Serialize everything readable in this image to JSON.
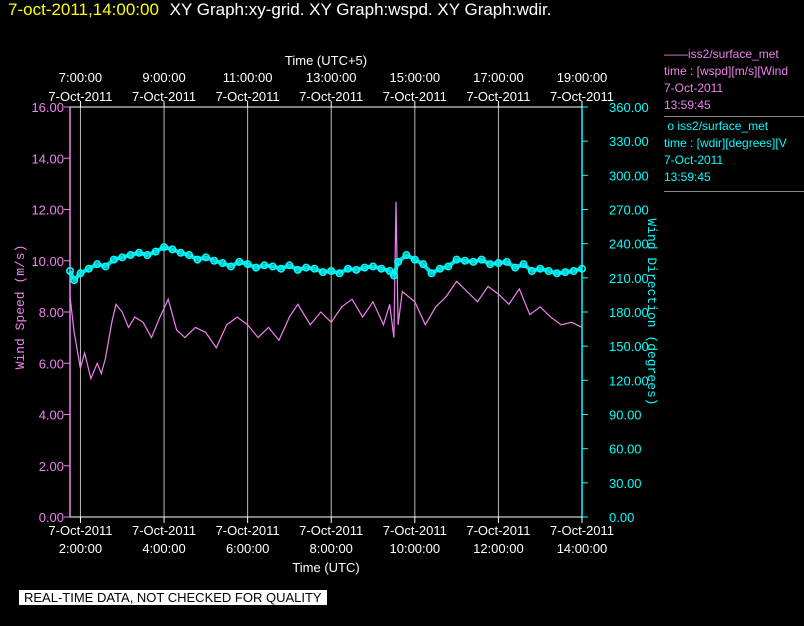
{
  "header": {
    "timestamp": "7-oct-2011,14:00:00",
    "title": "XY Graph:xy-grid.  XY Graph:wspd.  XY Graph:wdir."
  },
  "legend": [
    {
      "marker": "——",
      "name": "iss2/surface_met",
      "expr": "time : [wspd][m/s][Wind",
      "date": "7-Oct-2011",
      "time": "13:59:45",
      "color": "#ee82ee"
    },
    {
      "marker": "o",
      "name": "iss2/surface_met",
      "expr": "time : [wdir][degrees][V",
      "date": "7-Oct-2011",
      "time": "13:59:45",
      "color": "#00ffff"
    }
  ],
  "footer": {
    "quality_note": "REAL-TIME DATA, NOT CHECKED FOR QUALITY"
  },
  "chart_data": {
    "type": "line",
    "xlabel_bottom": "Time (UTC)",
    "xlabel_top": "Time (UTC+5)",
    "ylabel_left": "Wind Speed (m/s)",
    "ylabel_right": "Wind Direction (degrees)",
    "xlim": [
      "2011-10-07T01:45:00",
      "2011-10-07T14:00:00"
    ],
    "ylim_left": [
      0,
      16
    ],
    "ylim_right": [
      0,
      360
    ],
    "grid": true,
    "bottom_ticks": [
      {
        "date": "7-Oct-2011",
        "time": "2:00:00",
        "hour": 2
      },
      {
        "date": "7-Oct-2011",
        "time": "4:00:00",
        "hour": 4
      },
      {
        "date": "7-Oct-2011",
        "time": "6:00:00",
        "hour": 6
      },
      {
        "date": "7-Oct-2011",
        "time": "8:00:00",
        "hour": 8
      },
      {
        "date": "7-Oct-2011",
        "time": "10:00:00",
        "hour": 10
      },
      {
        "date": "7-Oct-2011",
        "time": "12:00:00",
        "hour": 12
      },
      {
        "date": "7-Oct-2011",
        "time": "14:00:00",
        "hour": 14
      }
    ],
    "top_ticks": [
      {
        "time": "7:00:00",
        "date": "7-Oct-2011",
        "hour": 2
      },
      {
        "time": "9:00:00",
        "date": "7-Oct-2011",
        "hour": 4
      },
      {
        "time": "11:00:00",
        "date": "7-Oct-2011",
        "hour": 6
      },
      {
        "time": "13:00:00",
        "date": "7-Oct-2011",
        "hour": 8
      },
      {
        "time": "15:00:00",
        "date": "7-Oct-2011",
        "hour": 10
      },
      {
        "time": "17:00:00",
        "date": "7-Oct-2011",
        "hour": 12
      },
      {
        "time": "19:00:00",
        "date": "7-Oct-2011",
        "hour": 14
      }
    ],
    "left_ticks": [
      "0.00",
      "2.00",
      "4.00",
      "6.00",
      "8.00",
      "10.00",
      "12.00",
      "14.00",
      "16.00"
    ],
    "right_ticks": [
      "0.00",
      "30.00",
      "60.00",
      "90.00",
      "120.00",
      "150.00",
      "180.00",
      "210.00",
      "240.00",
      "270.00",
      "300.00",
      "330.00",
      "360.00"
    ],
    "series": [
      {
        "name": "wspd",
        "axis": "left",
        "style": "line",
        "color": "#ee82ee",
        "hours": [
          1.75,
          1.85,
          2.0,
          2.1,
          2.25,
          2.4,
          2.5,
          2.6,
          2.75,
          2.85,
          3.0,
          3.15,
          3.3,
          3.5,
          3.7,
          3.9,
          4.1,
          4.3,
          4.5,
          4.75,
          5.0,
          5.25,
          5.5,
          5.75,
          6.0,
          6.25,
          6.5,
          6.75,
          7.0,
          7.2,
          7.5,
          7.75,
          8.0,
          8.25,
          8.5,
          8.75,
          9.0,
          9.25,
          9.4,
          9.5,
          9.55,
          9.6,
          9.7,
          9.85,
          10.0,
          10.25,
          10.5,
          10.75,
          11.0,
          11.25,
          11.5,
          11.75,
          12.0,
          12.25,
          12.5,
          12.75,
          13.0,
          13.25,
          13.5,
          13.75,
          14.0
        ],
        "values": [
          8.6,
          7.2,
          5.8,
          6.4,
          5.4,
          6.0,
          5.6,
          6.2,
          7.6,
          8.3,
          8.0,
          7.4,
          7.8,
          7.6,
          7.0,
          7.8,
          8.5,
          7.3,
          7.0,
          7.4,
          7.2,
          6.6,
          7.5,
          7.8,
          7.5,
          7.0,
          7.4,
          6.9,
          7.8,
          8.3,
          7.5,
          8.0,
          7.6,
          8.2,
          8.5,
          7.8,
          8.4,
          7.5,
          8.3,
          7.0,
          12.3,
          7.5,
          8.8,
          8.6,
          8.4,
          7.5,
          8.2,
          8.6,
          9.2,
          8.8,
          8.4,
          9.0,
          8.7,
          8.3,
          8.9,
          7.9,
          8.2,
          7.8,
          7.5,
          7.6,
          7.4
        ]
      },
      {
        "name": "wdir",
        "axis": "right",
        "style": "markers",
        "color": "#00ffff",
        "hours": [
          1.75,
          1.85,
          2.0,
          2.2,
          2.4,
          2.6,
          2.8,
          3.0,
          3.2,
          3.4,
          3.6,
          3.8,
          4.0,
          4.2,
          4.4,
          4.6,
          4.8,
          5.0,
          5.2,
          5.4,
          5.6,
          5.8,
          6.0,
          6.2,
          6.4,
          6.6,
          6.8,
          7.0,
          7.2,
          7.4,
          7.6,
          7.8,
          8.0,
          8.2,
          8.4,
          8.6,
          8.8,
          9.0,
          9.2,
          9.4,
          9.5,
          9.6,
          9.8,
          10.0,
          10.2,
          10.4,
          10.6,
          10.8,
          11.0,
          11.2,
          11.4,
          11.6,
          11.8,
          12.0,
          12.2,
          12.4,
          12.6,
          12.8,
          13.0,
          13.2,
          13.4,
          13.6,
          13.8,
          14.0
        ],
        "values": [
          216,
          208,
          214,
          218,
          222,
          220,
          226,
          228,
          230,
          232,
          230,
          233,
          237,
          235,
          232,
          230,
          226,
          228,
          225,
          223,
          220,
          224,
          222,
          219,
          221,
          220,
          218,
          221,
          217,
          219,
          218,
          215,
          216,
          214,
          218,
          217,
          219,
          220,
          218,
          216,
          212,
          224,
          230,
          226,
          222,
          214,
          218,
          220,
          226,
          225,
          224,
          226,
          222,
          223,
          224,
          219,
          222,
          216,
          218,
          216,
          214,
          215,
          216,
          218
        ]
      }
    ]
  }
}
